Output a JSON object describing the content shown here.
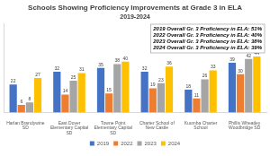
{
  "chart_data": {
    "type": "bar",
    "title": "Schools Showing Proficiency Improvements at Grade 3 in ELA",
    "subtitle": "2019-2024",
    "categories": [
      "Harlan Brandywine SD",
      "East Dover Elementary Capital SD",
      "Towne Point Elementary Capital SD",
      "Charter School of New Castle",
      "Kuumba Charter School",
      "Phillis Wheatley Woodbridge SD"
    ],
    "series": [
      {
        "name": "2019",
        "color": "#4472c4",
        "values": [
          22,
          32,
          35,
          32,
          18,
          39
        ]
      },
      {
        "name": "2022",
        "color": "#ed7d31",
        "values": [
          6,
          14,
          15,
          19,
          11,
          30
        ]
      },
      {
        "name": "2023",
        "color": "#a5a5a5",
        "values": [
          8,
          25,
          38,
          23,
          26,
          42
        ]
      },
      {
        "name": "2024",
        "color": "#ffc000",
        "values": [
          27,
          31,
          40,
          36,
          33,
          44
        ]
      }
    ],
    "annotations": [
      "2019 Overall Gr. 3 Proficiency in ELA: 51%",
      "2022 Overall Gr. 3 Proficiency in ELA: 40%",
      "2023 Overall Gr. 3 Proficiency in ELA: 38%",
      "2024 Overall Gr. 3 Proficiency in ELA: 39%"
    ],
    "ylim": [
      0,
      70
    ],
    "grid": false,
    "legend": "bottom",
    "data_labels": true,
    "tick_labels": "x"
  }
}
